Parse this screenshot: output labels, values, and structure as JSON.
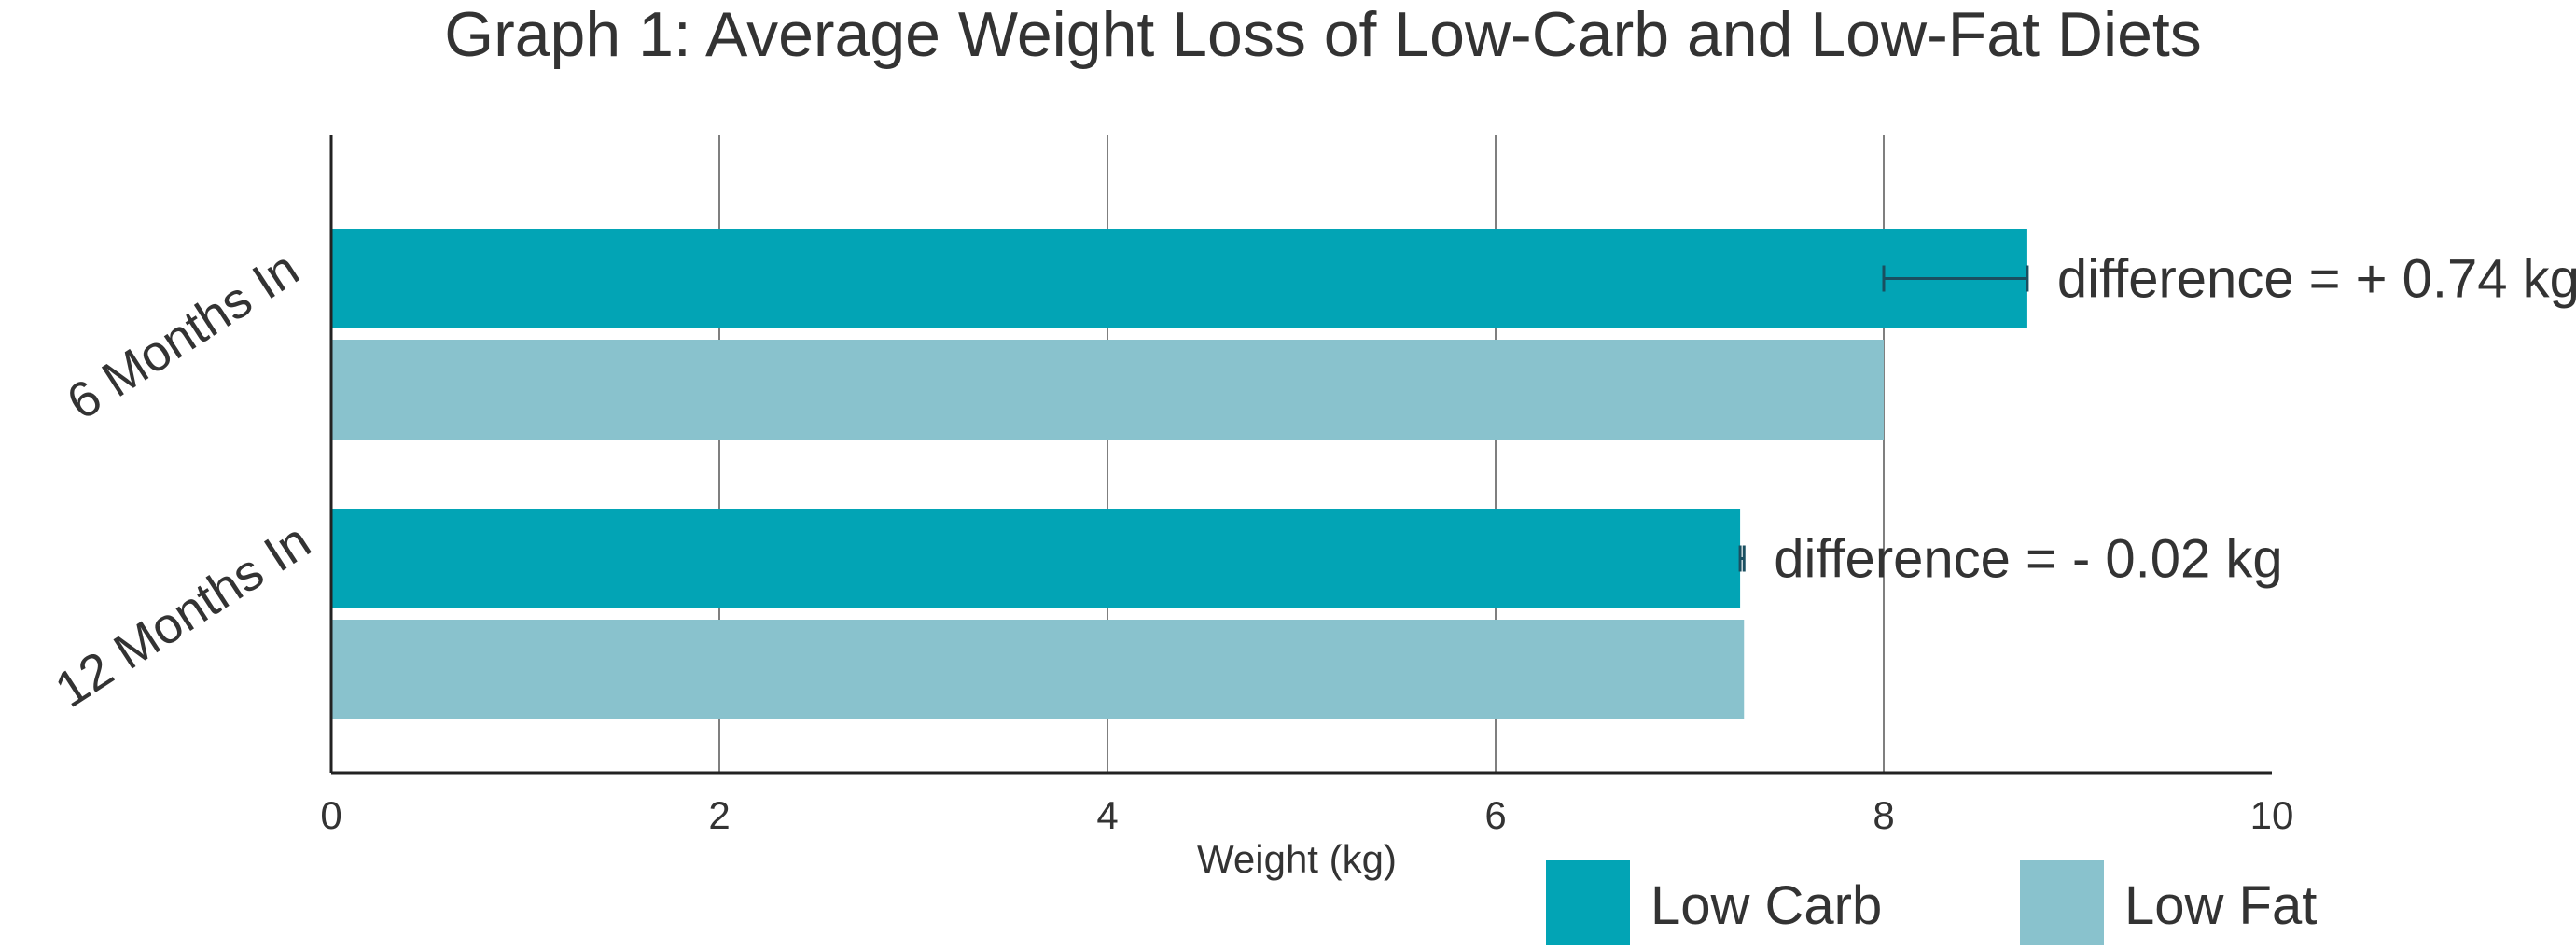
{
  "chart_data": {
    "type": "bar",
    "orientation": "horizontal",
    "title": "Graph 1: Average Weight Loss of Low-Carb and Low-Fat Diets",
    "xlabel": "Weight (kg)",
    "ylabel": "",
    "categories": [
      "6 Months In",
      "12 Months In"
    ],
    "series": [
      {
        "name": "Low Carb",
        "values": [
          8.74,
          7.26
        ],
        "color": "#02a4b5"
      },
      {
        "name": "Low Fat",
        "values": [
          8.0,
          7.28
        ],
        "color": "#89c2cd"
      }
    ],
    "xlim": [
      0,
      10
    ],
    "xticks": [
      0,
      2,
      4,
      6,
      8,
      10
    ],
    "grid": "vertical",
    "legend": "bottom-right",
    "annotations": [
      {
        "category": "6 Months In",
        "text": "difference = + 0.74 kg"
      },
      {
        "category": "12 Months In",
        "text": "difference = - 0.02 kg"
      }
    ],
    "colors": {
      "grid": "#555555",
      "axis": "#222222",
      "text": "#333333",
      "bracket": "#1a4f60"
    }
  }
}
